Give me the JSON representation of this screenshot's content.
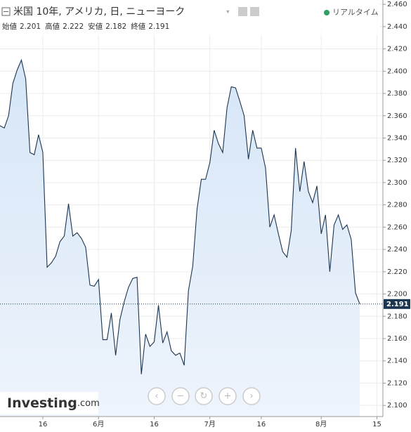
{
  "chart_data": {
    "type": "area",
    "title": "米国 10年, アメリカ, 日, ニューヨーク",
    "status": "リアルタイム",
    "logo": "Investing",
    "logo_suffix": ".com",
    "ohlc": [
      {
        "label": "始値",
        "value": 2.201
      },
      {
        "label": "高値",
        "value": 2.222
      },
      {
        "label": "安値",
        "value": 2.182
      },
      {
        "label": "終値",
        "value": 2.191
      }
    ],
    "last_value": {
      "value": 2.191,
      "label": "2.191"
    },
    "color": "#1c3550",
    "fill": "#dce9f8",
    "x": [
      0,
      1,
      2,
      3,
      4,
      5,
      6,
      7,
      8,
      9,
      10,
      11,
      12,
      13,
      14,
      15,
      16,
      17,
      18,
      19,
      20,
      21,
      22,
      23,
      24,
      25,
      26,
      27,
      28,
      29,
      30,
      31,
      32,
      33,
      34,
      35,
      36,
      37,
      38,
      39,
      40,
      41,
      42,
      43,
      44,
      45,
      46,
      47,
      48,
      49,
      50,
      51,
      52,
      53,
      54,
      55,
      56,
      57,
      58,
      59,
      60,
      61,
      62,
      63,
      64,
      65,
      66,
      67,
      68,
      69,
      70,
      71,
      72,
      73,
      74,
      75,
      76,
      77,
      78,
      79,
      80,
      81,
      82,
      83,
      84
    ],
    "values": [
      2.351,
      2.349,
      2.36,
      2.389,
      2.401,
      2.41,
      2.393,
      2.327,
      2.325,
      2.343,
      2.327,
      2.224,
      2.228,
      2.234,
      2.247,
      2.252,
      2.281,
      2.252,
      2.255,
      2.25,
      2.242,
      2.208,
      2.207,
      2.213,
      2.159,
      2.159,
      2.183,
      2.145,
      2.177,
      2.193,
      2.206,
      2.214,
      2.215,
      2.128,
      2.164,
      2.153,
      2.157,
      2.19,
      2.156,
      2.166,
      2.149,
      2.145,
      2.147,
      2.136,
      2.203,
      2.225,
      2.276,
      2.303,
      2.303,
      2.318,
      2.347,
      2.335,
      2.327,
      2.367,
      2.386,
      2.385,
      2.373,
      2.36,
      2.321,
      2.347,
      2.331,
      2.331,
      2.313,
      2.26,
      2.271,
      2.254,
      2.238,
      2.233,
      2.257,
      2.331,
      2.292,
      2.319,
      2.292,
      2.282,
      2.297,
      2.254,
      2.271,
      2.22,
      2.262,
      2.271,
      2.258,
      2.262,
      2.249,
      2.201,
      2.191
    ],
    "xlim": [
      0,
      89.4
    ],
    "xticks": [
      {
        "value": 10,
        "label": "16"
      },
      {
        "value": 23,
        "label": "6月"
      },
      {
        "value": 36,
        "label": "16"
      },
      {
        "value": 49,
        "label": "7月"
      },
      {
        "value": 61,
        "label": "16"
      },
      {
        "value": 75,
        "label": "8月"
      },
      {
        "value": 88,
        "label": "15"
      }
    ],
    "ylim": [
      2.09,
      2.462
    ],
    "yticks": [
      {
        "value": 2.1,
        "label": "2.100"
      },
      {
        "value": 2.12,
        "label": "2.120"
      },
      {
        "value": 2.14,
        "label": "2.140"
      },
      {
        "value": 2.16,
        "label": "2.160"
      },
      {
        "value": 2.18,
        "label": "2.180"
      },
      {
        "value": 2.2,
        "label": "2.200"
      },
      {
        "value": 2.22,
        "label": "2.220"
      },
      {
        "value": 2.24,
        "label": "2.240"
      },
      {
        "value": 2.26,
        "label": "2.260"
      },
      {
        "value": 2.28,
        "label": "2.280"
      },
      {
        "value": 2.3,
        "label": "2.300"
      },
      {
        "value": 2.32,
        "label": "2.320"
      },
      {
        "value": 2.34,
        "label": "2.340"
      },
      {
        "value": 2.36,
        "label": "2.360"
      },
      {
        "value": 2.38,
        "label": "2.380"
      },
      {
        "value": 2.4,
        "label": "2.400"
      },
      {
        "value": 2.42,
        "label": "2.420"
      },
      {
        "value": 2.44,
        "label": "2.440"
      },
      {
        "value": 2.46,
        "label": "2.460"
      }
    ],
    "grid": true
  }
}
